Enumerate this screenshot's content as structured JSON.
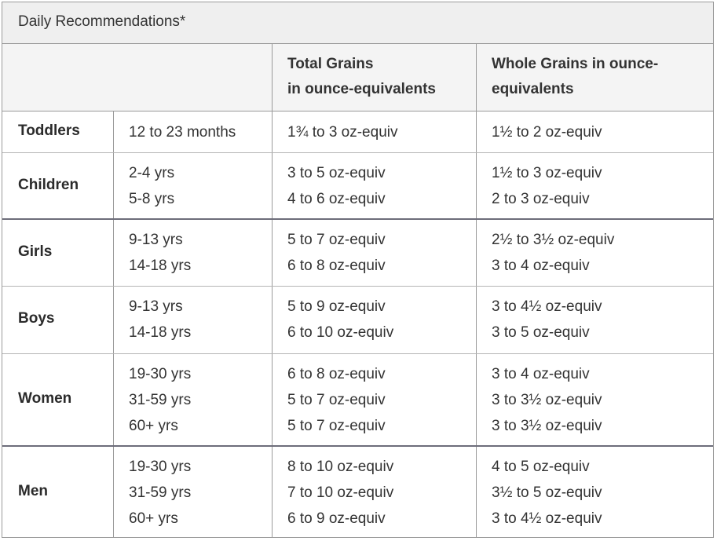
{
  "title": "Daily Recommendations*",
  "headers": {
    "col1": "",
    "col2": "",
    "total_line1": "Total Grains",
    "total_line2": "in ounce-equivalents",
    "whole_line1": "Whole Grains in ounce-",
    "whole_line2": "equivalents"
  },
  "rows": [
    {
      "group": "Toddlers",
      "ages": [
        "12 to 23 months"
      ],
      "total": [
        "1¾ to 3 oz-equiv"
      ],
      "whole": [
        "1½ to 2 oz-equiv"
      ]
    },
    {
      "group": "Children",
      "ages": [
        "2-4 yrs",
        "5-8 yrs"
      ],
      "total": [
        "3 to 5 oz-equiv",
        "4 to 6 oz-equiv"
      ],
      "whole": [
        "1½ to 3 oz-equiv",
        "2 to 3 oz-equiv"
      ]
    },
    {
      "group": "Girls",
      "ages": [
        "9-13 yrs",
        "14-18 yrs"
      ],
      "total": [
        "5 to 7 oz-equiv",
        "6 to 8 oz-equiv"
      ],
      "whole": [
        "2½ to 3½ oz-equiv",
        "3 to 4 oz-equiv"
      ]
    },
    {
      "group": "Boys",
      "ages": [
        "9-13 yrs",
        "14-18 yrs"
      ],
      "total": [
        "5 to 9 oz-equiv",
        "6 to 10 oz-equiv"
      ],
      "whole": [
        "3 to 4½ oz-equiv",
        "3 to 5 oz-equiv"
      ]
    },
    {
      "group": "Women",
      "ages": [
        "19-30 yrs",
        "31-59 yrs",
        "60+ yrs"
      ],
      "total": [
        "6 to 8 oz-equiv",
        "5 to 7 oz-equiv",
        "5 to 7 oz-equiv"
      ],
      "whole": [
        "3 to 4 oz-equiv",
        "3 to 3½ oz-equiv",
        "3 to 3½ oz-equiv"
      ]
    },
    {
      "group": "Men",
      "ages": [
        "19-30 yrs",
        "31-59 yrs",
        "60+ yrs"
      ],
      "total": [
        "8 to 10 oz-equiv",
        "7 to 10 oz-equiv",
        "6 to 9 oz-equiv"
      ],
      "whole": [
        "4 to 5 oz-equiv",
        "3½ to 5 oz-equiv",
        "3 to 4½ oz-equiv"
      ]
    }
  ]
}
